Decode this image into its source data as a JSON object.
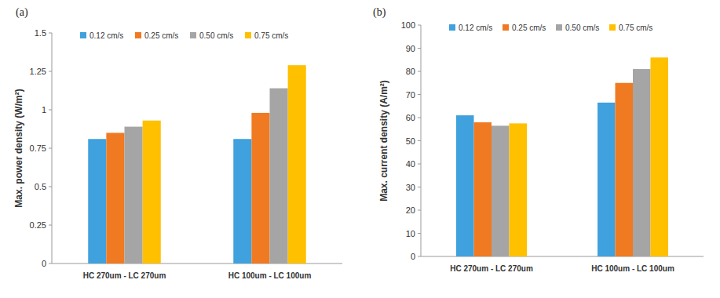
{
  "chart_data": [
    {
      "type": "bar",
      "title": "(a)",
      "y_label": "Max. power density (W/m²)",
      "categories": [
        "HC 270um - LC 270um",
        "HC 100um - LC 100um"
      ],
      "series": [
        {
          "name": "0.12 cm/s",
          "color": "#3fa1dd",
          "values": [
            0.81,
            0.81
          ]
        },
        {
          "name": "0.25 cm/s",
          "color": "#f07a22",
          "values": [
            0.85,
            0.98
          ]
        },
        {
          "name": "0.50 cm/s",
          "color": "#a5a5a5",
          "values": [
            0.89,
            1.14
          ]
        },
        {
          "name": "0.75 cm/s",
          "color": "#ffc000",
          "values": [
            0.93,
            1.29
          ]
        }
      ],
      "ylim": [
        0,
        1.5
      ],
      "yticks": [
        0,
        0.25,
        0.5,
        0.75,
        1,
        1.25,
        1.5
      ],
      "grid": false,
      "legend": "top"
    },
    {
      "type": "bar",
      "title": "(b)",
      "y_label": "Max. current density (A/m²)",
      "categories": [
        "HC 270um - LC 270um",
        "HC 100um - LC 100um"
      ],
      "series": [
        {
          "name": "0.12 cm/s",
          "color": "#3fa1dd",
          "values": [
            61,
            66.5
          ]
        },
        {
          "name": "0.25 cm/s",
          "color": "#f07a22",
          "values": [
            58,
            75
          ]
        },
        {
          "name": "0.50 cm/s",
          "color": "#a5a5a5",
          "values": [
            56.5,
            81
          ]
        },
        {
          "name": "0.75 cm/s",
          "color": "#ffc000",
          "values": [
            57.5,
            86
          ]
        }
      ],
      "ylim": [
        0,
        100
      ],
      "yticks": [
        0,
        10,
        20,
        30,
        40,
        50,
        60,
        70,
        80,
        90,
        100
      ],
      "grid": false,
      "legend": "top"
    }
  ]
}
